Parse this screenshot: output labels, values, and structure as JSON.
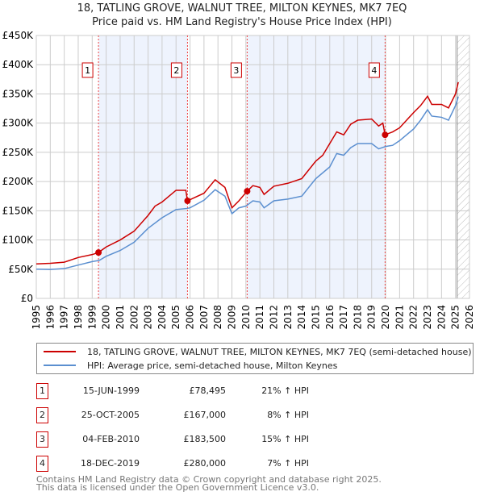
{
  "chart_data": {
    "type": "line",
    "title": "18, TATLING GROVE, WALNUT TREE, MILTON KEYNES, MK7 7EQ",
    "subtitle": "Price paid vs. HM Land Registry's House Price Index (HPI)",
    "xlim": [
      1995,
      2026
    ],
    "ylim": [
      0,
      450000
    ],
    "x_ticks": [
      "1995",
      "1996",
      "1997",
      "1998",
      "1999",
      "2000",
      "2001",
      "2002",
      "2003",
      "2004",
      "2005",
      "2006",
      "2007",
      "2008",
      "2009",
      "2010",
      "2011",
      "2012",
      "2013",
      "2014",
      "2015",
      "2016",
      "2017",
      "2018",
      "2019",
      "2020",
      "2021",
      "2022",
      "2023",
      "2024",
      "2025",
      "2026"
    ],
    "y_ticks": [
      {
        "v": 0,
        "l": "£0"
      },
      {
        "v": 50000,
        "l": "£50K"
      },
      {
        "v": 100000,
        "l": "£100K"
      },
      {
        "v": 150000,
        "l": "£150K"
      },
      {
        "v": 200000,
        "l": "£200K"
      },
      {
        "v": 250000,
        "l": "£250K"
      },
      {
        "v": 300000,
        "l": "£300K"
      },
      {
        "v": 350000,
        "l": "£350K"
      },
      {
        "v": 400000,
        "l": "£400K"
      },
      {
        "v": 450000,
        "l": "£450K"
      }
    ],
    "grid": true,
    "shaded_periods": [
      [
        1999.45,
        2005.82
      ],
      [
        2010.09,
        2019.96
      ]
    ],
    "forecast_from": 2025.0,
    "series": [
      {
        "name": "18, TATLING GROVE, WALNUT TREE, MILTON KEYNES, MK7 7EQ (semi-detached house)",
        "color": "#cc0000",
        "x": [
          1995,
          1996,
          1997,
          1998,
          1999,
          1999.45,
          2000,
          2001,
          2002,
          2003,
          2003.5,
          2004,
          2005,
          2005.7,
          2005.82,
          2007,
          2007.8,
          2008.5,
          2009,
          2009.5,
          2010.09,
          2010.5,
          2011,
          2011.3,
          2012,
          2013,
          2014,
          2015,
          2015.5,
          2016,
          2016.5,
          2017,
          2017.5,
          2018,
          2019,
          2019.5,
          2019.8,
          2019.96,
          2020.5,
          2021,
          2022,
          2022.5,
          2023,
          2023.3,
          2024,
          2024.5,
          2025,
          2025.2
        ],
        "y": [
          59000,
          60000,
          62000,
          70000,
          75000,
          78495,
          88000,
          100000,
          115000,
          142000,
          158000,
          165000,
          185000,
          185000,
          167000,
          180000,
          203000,
          190000,
          155000,
          167000,
          183500,
          193000,
          190000,
          178000,
          192000,
          197000,
          205000,
          235000,
          245000,
          265000,
          285000,
          280000,
          298000,
          305000,
          307000,
          295000,
          300000,
          280000,
          285000,
          292000,
          318000,
          330000,
          346000,
          332000,
          332000,
          326000,
          350000,
          370000
        ]
      },
      {
        "name": "HPI: Average price, semi-detached house, Milton Keynes",
        "color": "#5b8fd0",
        "x": [
          1995,
          1996,
          1997,
          1998,
          1999,
          1999.5,
          2000,
          2001,
          2002,
          2003,
          2004,
          2005,
          2005.8,
          2006,
          2007,
          2007.8,
          2008.5,
          2009,
          2009.5,
          2010,
          2010.5,
          2011,
          2011.3,
          2012,
          2013,
          2014,
          2015,
          2016,
          2016.5,
          2017,
          2017.5,
          2018,
          2019,
          2019.5,
          2020,
          2020.5,
          2021,
          2022,
          2022.5,
          2023,
          2023.3,
          2024,
          2024.5,
          2025,
          2025.2
        ],
        "y": [
          50000,
          49500,
          51000,
          57000,
          63000,
          65000,
          72000,
          82000,
          96000,
          120000,
          138000,
          152000,
          154000,
          155000,
          168000,
          186000,
          175000,
          145000,
          155000,
          158000,
          167000,
          165000,
          155000,
          167000,
          170000,
          175000,
          205000,
          225000,
          248000,
          245000,
          258000,
          265000,
          265000,
          256000,
          260000,
          262000,
          270000,
          290000,
          305000,
          323000,
          312000,
          310000,
          305000,
          330000,
          345000
        ]
      }
    ],
    "sales": [
      {
        "n": "1",
        "x": 1999.45,
        "y": 78495,
        "date": "15-JUN-1999",
        "price": "£78,495",
        "hpi": "21% ↑ HPI"
      },
      {
        "n": "2",
        "x": 2005.82,
        "y": 167000,
        "date": "25-OCT-2005",
        "price": "£167,000",
        "hpi": "8% ↑ HPI"
      },
      {
        "n": "3",
        "x": 2010.09,
        "y": 183500,
        "date": "04-FEB-2010",
        "price": "£183,500",
        "hpi": "15% ↑ HPI"
      },
      {
        "n": "4",
        "x": 2019.96,
        "y": 280000,
        "date": "18-DEC-2019",
        "price": "£280,000",
        "hpi": "7% ↑ HPI"
      }
    ]
  },
  "legend": {
    "red": "18, TATLING GROVE, WALNUT TREE, MILTON KEYNES, MK7 7EQ (semi-detached house)",
    "blue": "HPI: Average price, semi-detached house, Milton Keynes"
  },
  "footer": {
    "line1": "Contains HM Land Registry data © Crown copyright and database right 2025.",
    "line2": "This data is licensed under the Open Government Licence v3.0."
  }
}
